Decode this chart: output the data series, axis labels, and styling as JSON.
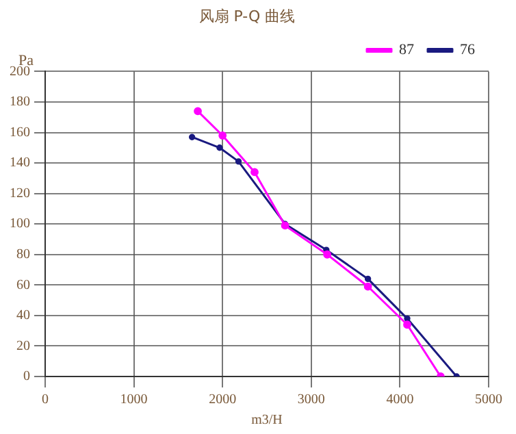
{
  "chart_data": {
    "type": "line",
    "title": "风扇 P-Q 曲线",
    "xlabel": "m3/H",
    "ylabel": "Pa",
    "series": [
      {
        "name": "76",
        "color": "#1a1a80",
        "x": [
          1656,
          1967,
          2180,
          2705,
          3170,
          3639,
          4082,
          4639
        ],
        "values": [
          157,
          150,
          141,
          100,
          83,
          64,
          38,
          0
        ]
      },
      {
        "name": "87",
        "color": "#ff00ff",
        "x": [
          1721,
          2000,
          2361,
          2705,
          3180,
          3639,
          4082,
          4459
        ],
        "values": [
          174,
          158,
          134,
          99,
          80,
          59,
          34,
          0
        ]
      }
    ],
    "xlim": [
      0,
      5000
    ],
    "xticks": [
      0,
      1000,
      2000,
      3000,
      4000,
      5000
    ],
    "ylim": [
      0,
      200
    ],
    "yticks": [
      0,
      20,
      40,
      60,
      80,
      100,
      120,
      140,
      160,
      180,
      200
    ],
    "grid": true,
    "legend": "top right",
    "marker": "circle",
    "line_style": "solid"
  }
}
